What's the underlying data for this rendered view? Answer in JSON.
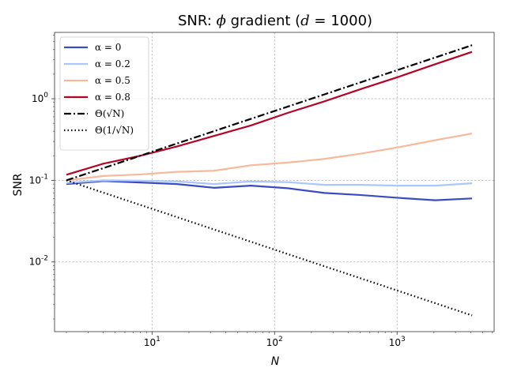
{
  "chart_data": {
    "type": "line",
    "title": "SNR: ϕ gradient (d = 1000)",
    "title_parts": {
      "prefix": "SNR: ",
      "symbol": "ϕ",
      "middle": " gradient (",
      "var": "d",
      "eq": " = ",
      "value": "1000",
      "suffix": ")"
    },
    "xlabel": "N",
    "ylabel": "SNR",
    "xscale": "log",
    "yscale": "log",
    "xlim": [
      1.6,
      6200
    ],
    "ylim": [
      0.0014,
      6.5
    ],
    "x_ticks": [
      {
        "value": 10,
        "base": "10",
        "exp": "1"
      },
      {
        "value": 100,
        "base": "10",
        "exp": "2"
      },
      {
        "value": 1000,
        "base": "10",
        "exp": "3"
      }
    ],
    "y_ticks": [
      {
        "value": 0.01,
        "base": "10",
        "exp": "-2"
      },
      {
        "value": 0.1,
        "base": "10",
        "exp": "-1"
      },
      {
        "value": 1,
        "base": "10",
        "exp": "0"
      }
    ],
    "grid": true,
    "legend_position": "top-left",
    "x": [
      2,
      4,
      8,
      16,
      32,
      64,
      128,
      256,
      512,
      1024,
      2048,
      4096
    ],
    "series": [
      {
        "name": "α = 0",
        "color": "#3b4cc0",
        "style": "solid",
        "values": [
          0.09,
          0.098,
          0.094,
          0.09,
          0.081,
          0.086,
          0.08,
          0.07,
          0.066,
          0.061,
          0.057,
          0.06
        ]
      },
      {
        "name": "α = 0.2",
        "color": "#aac7fd",
        "style": "solid",
        "values": [
          0.093,
          0.1,
          0.099,
          0.097,
          0.09,
          0.097,
          0.095,
          0.088,
          0.088,
          0.086,
          0.086,
          0.092
        ]
      },
      {
        "name": "α = 0.5",
        "color": "#f7b89c",
        "style": "solid",
        "values": [
          0.1,
          0.113,
          0.118,
          0.127,
          0.131,
          0.153,
          0.165,
          0.183,
          0.213,
          0.254,
          0.31,
          0.375
        ]
      },
      {
        "name": "α = 0.8",
        "color": "#b40426",
        "style": "solid",
        "values": [
          0.117,
          0.16,
          0.2,
          0.26,
          0.35,
          0.47,
          0.67,
          0.93,
          1.32,
          1.85,
          2.65,
          3.75
        ]
      },
      {
        "name": "Θ(√N)",
        "color": "#000000",
        "style": "dashdot",
        "values": [
          0.1,
          0.141,
          0.2,
          0.283,
          0.4,
          0.566,
          0.8,
          1.131,
          1.6,
          2.263,
          3.2,
          4.525
        ]
      },
      {
        "name": "Θ(1/√N)",
        "color": "#000000",
        "style": "dotted",
        "values": [
          0.1,
          0.0707,
          0.05,
          0.0354,
          0.025,
          0.0177,
          0.0125,
          0.00884,
          0.00625,
          0.00442,
          0.003125,
          0.00221
        ]
      }
    ]
  }
}
